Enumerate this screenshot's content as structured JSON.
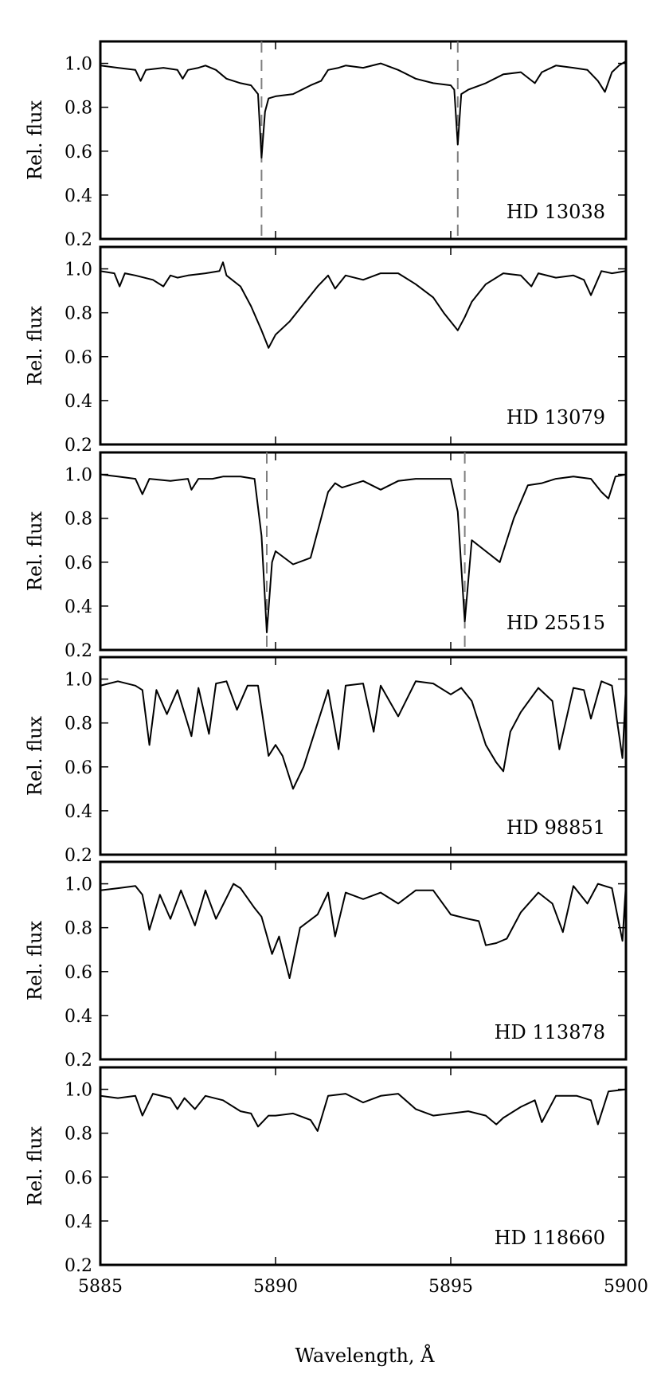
{
  "chart_data": {
    "type": "line",
    "xlabel": "Wavelength, Å",
    "ylabel": "Rel. flux",
    "xlim": [
      5885,
      5900
    ],
    "ylim": [
      0.2,
      1.1
    ],
    "x_ticks": [
      5885,
      5890,
      5895,
      5900
    ],
    "x_tick_labels": [
      "5885",
      "5890",
      "5895",
      "5900"
    ],
    "y_ticks": [
      0.2,
      0.4,
      0.6,
      0.8,
      1.0
    ],
    "y_tick_labels": [
      "0.2",
      "0.4",
      "0.6",
      "0.8",
      "1.0"
    ],
    "grid": false,
    "panels": [
      {
        "label": "HD 13038",
        "markers": [
          5889.6,
          5895.2
        ],
        "series": [
          {
            "x": [
              5885,
              5885.5,
              5886,
              5886.15,
              5886.3,
              5886.8,
              5887.2,
              5887.35,
              5887.5,
              5887.8,
              5888.0,
              5888.3,
              5888.6,
              5889.0,
              5889.3,
              5889.5,
              5889.6,
              5889.7,
              5889.8,
              5890.0,
              5890.5,
              5891.0,
              5891.3,
              5891.5,
              5891.8,
              5892.0,
              5892.5,
              5893.0,
              5893.5,
              5894.0,
              5894.5,
              5895.0,
              5895.1,
              5895.2,
              5895.3,
              5895.5,
              5896.0,
              5896.5,
              5897.0,
              5897.4,
              5897.6,
              5898.0,
              5898.5,
              5898.9,
              5899.2,
              5899.4,
              5899.6,
              5899.8,
              5900
            ],
            "y": [
              0.99,
              0.98,
              0.97,
              0.92,
              0.97,
              0.98,
              0.97,
              0.93,
              0.97,
              0.98,
              0.99,
              0.97,
              0.93,
              0.91,
              0.9,
              0.86,
              0.57,
              0.78,
              0.84,
              0.85,
              0.86,
              0.9,
              0.92,
              0.97,
              0.98,
              0.99,
              0.98,
              1.0,
              0.97,
              0.93,
              0.91,
              0.9,
              0.88,
              0.63,
              0.86,
              0.88,
              0.91,
              0.95,
              0.96,
              0.91,
              0.96,
              0.99,
              0.98,
              0.97,
              0.92,
              0.87,
              0.96,
              0.99,
              1.01
            ]
          }
        ]
      },
      {
        "label": "HD 13079",
        "markers": [],
        "series": [
          {
            "x": [
              5885,
              5885.4,
              5885.55,
              5885.7,
              5886.0,
              5886.5,
              5886.8,
              5887.0,
              5887.2,
              5887.5,
              5888.0,
              5888.4,
              5888.5,
              5888.6,
              5889.0,
              5889.3,
              5889.6,
              5889.8,
              5890.0,
              5890.4,
              5890.8,
              5891.2,
              5891.5,
              5891.7,
              5892.0,
              5892.5,
              5893.0,
              5893.5,
              5894.0,
              5894.5,
              5894.8,
              5895.0,
              5895.2,
              5895.4,
              5895.6,
              5896.0,
              5896.5,
              5897.0,
              5897.3,
              5897.5,
              5898.0,
              5898.5,
              5898.8,
              5899.0,
              5899.3,
              5899.6,
              5900
            ],
            "y": [
              0.99,
              0.98,
              0.92,
              0.98,
              0.97,
              0.95,
              0.92,
              0.97,
              0.96,
              0.97,
              0.98,
              0.99,
              1.03,
              0.97,
              0.92,
              0.83,
              0.72,
              0.64,
              0.7,
              0.76,
              0.84,
              0.92,
              0.97,
              0.91,
              0.97,
              0.95,
              0.98,
              0.98,
              0.93,
              0.87,
              0.8,
              0.76,
              0.72,
              0.78,
              0.85,
              0.93,
              0.98,
              0.97,
              0.92,
              0.98,
              0.96,
              0.97,
              0.95,
              0.88,
              0.99,
              0.98,
              0.99
            ]
          }
        ]
      },
      {
        "label": "HD 25515",
        "markers": [
          5889.75,
          5895.4
        ],
        "series": [
          {
            "x": [
              5885,
              5885.5,
              5886.0,
              5886.2,
              5886.4,
              5887.0,
              5887.5,
              5887.6,
              5887.8,
              5888.2,
              5888.5,
              5889.0,
              5889.4,
              5889.6,
              5889.75,
              5889.9,
              5890.0,
              5890.5,
              5891.0,
              5891.3,
              5891.5,
              5891.7,
              5891.9,
              5892.5,
              5893.0,
              5893.5,
              5894.0,
              5894.5,
              5895.0,
              5895.2,
              5895.4,
              5895.6,
              5896.0,
              5896.4,
              5896.8,
              5897.2,
              5897.6,
              5898.0,
              5898.5,
              5899.0,
              5899.3,
              5899.5,
              5899.7,
              5900
            ],
            "y": [
              1.0,
              0.99,
              0.98,
              0.91,
              0.98,
              0.97,
              0.98,
              0.93,
              0.98,
              0.98,
              0.99,
              0.99,
              0.98,
              0.72,
              0.28,
              0.6,
              0.65,
              0.59,
              0.62,
              0.8,
              0.92,
              0.96,
              0.94,
              0.97,
              0.93,
              0.97,
              0.98,
              0.98,
              0.98,
              0.83,
              0.33,
              0.7,
              0.65,
              0.6,
              0.8,
              0.95,
              0.96,
              0.98,
              0.99,
              0.98,
              0.92,
              0.89,
              0.99,
              1.0
            ]
          }
        ]
      },
      {
        "label": "HD 98851",
        "markers": [],
        "series": [
          {
            "x": [
              5885,
              5885.5,
              5886.0,
              5886.2,
              5886.4,
              5886.6,
              5886.9,
              5887.2,
              5887.6,
              5887.8,
              5888.1,
              5888.3,
              5888.6,
              5888.9,
              5889.2,
              5889.5,
              5889.8,
              5890.0,
              5890.2,
              5890.5,
              5890.8,
              5891.2,
              5891.5,
              5891.8,
              5892.0,
              5892.5,
              5892.8,
              5893.0,
              5893.5,
              5894.0,
              5894.5,
              5895.0,
              5895.3,
              5895.6,
              5896.0,
              5896.3,
              5896.5,
              5896.7,
              5897.0,
              5897.5,
              5897.9,
              5898.1,
              5898.5,
              5898.8,
              5899.0,
              5899.3,
              5899.6,
              5899.9,
              5900
            ],
            "y": [
              0.97,
              0.99,
              0.97,
              0.95,
              0.7,
              0.95,
              0.84,
              0.95,
              0.74,
              0.96,
              0.75,
              0.98,
              0.99,
              0.86,
              0.97,
              0.97,
              0.65,
              0.7,
              0.65,
              0.5,
              0.6,
              0.8,
              0.95,
              0.68,
              0.97,
              0.98,
              0.76,
              0.97,
              0.83,
              0.99,
              0.98,
              0.93,
              0.96,
              0.9,
              0.7,
              0.62,
              0.58,
              0.76,
              0.85,
              0.96,
              0.9,
              0.68,
              0.96,
              0.95,
              0.82,
              0.99,
              0.97,
              0.64,
              0.97
            ]
          }
        ]
      },
      {
        "label": "HD 113878",
        "markers": [],
        "series": [
          {
            "x": [
              5885,
              5885.5,
              5886.0,
              5886.2,
              5886.4,
              5886.7,
              5887.0,
              5887.3,
              5887.7,
              5888.0,
              5888.3,
              5888.8,
              5889.0,
              5889.4,
              5889.6,
              5889.9,
              5890.1,
              5890.4,
              5890.7,
              5891.2,
              5891.5,
              5891.7,
              5892.0,
              5892.5,
              5893.0,
              5893.5,
              5894.0,
              5894.5,
              5895.0,
              5895.5,
              5895.8,
              5896.0,
              5896.3,
              5896.6,
              5897.0,
              5897.5,
              5897.9,
              5898.2,
              5898.5,
              5898.9,
              5899.2,
              5899.6,
              5899.9,
              5900
            ],
            "y": [
              0.97,
              0.98,
              0.99,
              0.95,
              0.79,
              0.95,
              0.84,
              0.97,
              0.81,
              0.97,
              0.84,
              1.0,
              0.98,
              0.89,
              0.85,
              0.68,
              0.76,
              0.57,
              0.8,
              0.86,
              0.96,
              0.76,
              0.96,
              0.93,
              0.96,
              0.91,
              0.97,
              0.97,
              0.86,
              0.84,
              0.83,
              0.72,
              0.73,
              0.75,
              0.87,
              0.96,
              0.91,
              0.78,
              0.99,
              0.91,
              1.0,
              0.98,
              0.74,
              1.0
            ]
          }
        ]
      },
      {
        "label": "HD 118660",
        "markers": [],
        "series": [
          {
            "x": [
              5885,
              5885.5,
              5886.0,
              5886.2,
              5886.5,
              5887.0,
              5887.2,
              5887.4,
              5887.7,
              5888.0,
              5888.5,
              5889.0,
              5889.3,
              5889.5,
              5889.8,
              5890.0,
              5890.5,
              5891.0,
              5891.2,
              5891.5,
              5892.0,
              5892.5,
              5893.0,
              5893.5,
              5894.0,
              5894.5,
              5895.0,
              5895.5,
              5896.0,
              5896.3,
              5896.5,
              5897.0,
              5897.4,
              5897.6,
              5898.0,
              5898.6,
              5899.0,
              5899.2,
              5899.5,
              5900
            ],
            "y": [
              0.97,
              0.96,
              0.97,
              0.88,
              0.98,
              0.96,
              0.91,
              0.96,
              0.91,
              0.97,
              0.95,
              0.9,
              0.89,
              0.83,
              0.88,
              0.88,
              0.89,
              0.86,
              0.81,
              0.97,
              0.98,
              0.94,
              0.97,
              0.98,
              0.91,
              0.88,
              0.89,
              0.9,
              0.88,
              0.84,
              0.87,
              0.92,
              0.95,
              0.85,
              0.97,
              0.97,
              0.95,
              0.84,
              0.99,
              1.0
            ]
          }
        ]
      }
    ]
  }
}
